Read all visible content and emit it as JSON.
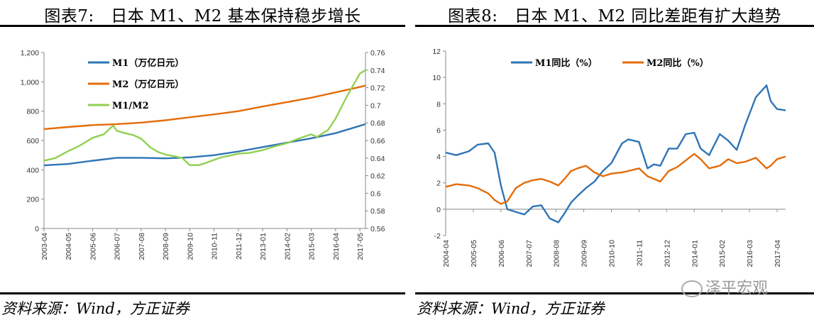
{
  "figures": [
    {
      "title": "图表7:　日本 M1、M2 基本保持稳步增长",
      "source": "资料来源：Wind，方正证券"
    },
    {
      "title": "图表8:　日本 M1、M2 同比差距有扩大趋势",
      "source": "资料来源：Wind，方正证券"
    }
  ],
  "watermark": "泽平宏观",
  "chart_data": [
    {
      "type": "line",
      "title": "图表7:　日本 M1、M2 基本保持稳步增长",
      "x_ticks": [
        "2003-04",
        "2004-05",
        "2005-06",
        "2006-07",
        "2007-08",
        "2008-09",
        "2009-10",
        "2010-11",
        "2011-12",
        "2013-01",
        "2014-02",
        "2015-03",
        "2016-04",
        "2017-05"
      ],
      "x_range": [
        "2003-04",
        "2017-08"
      ],
      "y_left_ticks": [
        "0",
        "200",
        "400",
        "600",
        "800",
        "1,000",
        "1,200"
      ],
      "y_left_range": [
        0,
        1200
      ],
      "y_right_ticks": [
        "0.56",
        "0.58",
        "0.6",
        "0.62",
        "0.64",
        "0.66",
        "0.68",
        "0.7",
        "0.72",
        "0.74",
        "0.76"
      ],
      "y_right_range": [
        0.56,
        0.76
      ],
      "grid": false,
      "legend_position": "top-left",
      "series": [
        {
          "name": "M1（万亿日元）",
          "axis": "left",
          "color": "#2e75b6",
          "x": [
            "2003-04",
            "2004-05",
            "2005-06",
            "2006-07",
            "2007-08",
            "2008-09",
            "2009-10",
            "2010-11",
            "2011-12",
            "2013-01",
            "2014-02",
            "2015-03",
            "2016-04",
            "2017-05",
            "2017-08"
          ],
          "y": [
            430,
            440,
            462,
            482,
            482,
            478,
            485,
            500,
            525,
            555,
            585,
            615,
            650,
            700,
            712
          ]
        },
        {
          "name": "M2（万亿日元）",
          "axis": "left",
          "color": "#e36c09",
          "x": [
            "2003-04",
            "2004-05",
            "2005-06",
            "2006-07",
            "2007-08",
            "2008-09",
            "2009-10",
            "2010-11",
            "2011-12",
            "2013-01",
            "2014-02",
            "2015-03",
            "2016-04",
            "2017-05",
            "2017-08"
          ],
          "y": [
            678,
            692,
            705,
            712,
            722,
            738,
            758,
            778,
            800,
            832,
            862,
            892,
            928,
            965,
            975
          ]
        },
        {
          "name": "M1/M2",
          "axis": "right",
          "color": "#92d050",
          "x": [
            "2003-04",
            "2003-10",
            "2004-05",
            "2004-11",
            "2005-06",
            "2005-12",
            "2006-05",
            "2006-07",
            "2006-10",
            "2007-04",
            "2007-08",
            "2008-01",
            "2008-05",
            "2008-09",
            "2009-02",
            "2009-06",
            "2009-10",
            "2010-03",
            "2010-06",
            "2010-11",
            "2011-03",
            "2011-08",
            "2011-12",
            "2012-06",
            "2013-01",
            "2013-07",
            "2014-02",
            "2014-08",
            "2015-03",
            "2015-06",
            "2015-12",
            "2016-04",
            "2016-10",
            "2017-05",
            "2017-08"
          ],
          "y": [
            0.637,
            0.64,
            0.648,
            0.654,
            0.663,
            0.667,
            0.677,
            0.671,
            0.669,
            0.666,
            0.662,
            0.652,
            0.647,
            0.644,
            0.642,
            0.64,
            0.632,
            0.632,
            0.634,
            0.638,
            0.641,
            0.643,
            0.645,
            0.646,
            0.649,
            0.653,
            0.657,
            0.662,
            0.667,
            0.664,
            0.672,
            0.685,
            0.71,
            0.736,
            0.74
          ]
        }
      ]
    },
    {
      "type": "line",
      "title": "图表8:　日本 M1、M2 同比差距有扩大趋势",
      "x_ticks": [
        "2004-04",
        "2005-05",
        "2006-06",
        "2007-07",
        "2008-08",
        "2009-09",
        "2010-10",
        "2011-11",
        "2012-12",
        "2014-01",
        "2015-02",
        "2016-03",
        "2017-04"
      ],
      "x_range": [
        "2004-04",
        "2017-08"
      ],
      "y_ticks": [
        "-2",
        "0",
        "2",
        "4",
        "6",
        "8",
        "10",
        "12"
      ],
      "y_range": [
        -2,
        12
      ],
      "grid": false,
      "legend_position": "top",
      "series": [
        {
          "name": "M1同比（%）",
          "color": "#2e75b6",
          "x": [
            "2004-04",
            "2004-09",
            "2005-03",
            "2005-07",
            "2005-12",
            "2006-03",
            "2006-06",
            "2006-09",
            "2007-01",
            "2007-05",
            "2007-09",
            "2008-01",
            "2008-05",
            "2008-09",
            "2008-12",
            "2009-03",
            "2009-06",
            "2009-10",
            "2010-02",
            "2010-06",
            "2010-10",
            "2011-03",
            "2011-06",
            "2011-11",
            "2012-03",
            "2012-06",
            "2012-09",
            "2013-01",
            "2013-05",
            "2013-09",
            "2014-01",
            "2014-04",
            "2014-08",
            "2015-01",
            "2015-05",
            "2015-09",
            "2016-01",
            "2016-06",
            "2016-11",
            "2017-01",
            "2017-04",
            "2017-08"
          ],
          "y": [
            4.3,
            4.1,
            4.4,
            4.9,
            5.0,
            4.3,
            1.8,
            0.0,
            -0.2,
            -0.4,
            0.2,
            0.3,
            -0.7,
            -1.0,
            -0.3,
            0.5,
            1.0,
            1.6,
            2.1,
            2.9,
            3.5,
            5.0,
            5.3,
            5.1,
            3.1,
            3.4,
            3.3,
            4.6,
            4.6,
            5.7,
            5.8,
            4.6,
            4.1,
            5.7,
            5.2,
            4.5,
            6.4,
            8.5,
            9.4,
            8.2,
            7.6,
            7.5
          ]
        },
        {
          "name": "M2同比（%）",
          "color": "#e36c09",
          "x": [
            "2004-04",
            "2004-09",
            "2005-03",
            "2005-07",
            "2005-12",
            "2006-03",
            "2006-06",
            "2006-09",
            "2007-01",
            "2007-05",
            "2007-09",
            "2008-01",
            "2008-05",
            "2008-09",
            "2008-12",
            "2009-03",
            "2009-06",
            "2009-10",
            "2010-02",
            "2010-06",
            "2010-10",
            "2011-03",
            "2011-06",
            "2011-11",
            "2012-03",
            "2012-06",
            "2012-09",
            "2013-01",
            "2013-05",
            "2013-09",
            "2014-01",
            "2014-04",
            "2014-08",
            "2015-01",
            "2015-05",
            "2015-09",
            "2016-01",
            "2016-06",
            "2016-11",
            "2017-01",
            "2017-04",
            "2017-08"
          ],
          "y": [
            1.7,
            1.9,
            1.8,
            1.6,
            1.2,
            0.7,
            0.4,
            0.6,
            1.6,
            2.0,
            2.2,
            2.3,
            2.1,
            1.8,
            2.3,
            2.9,
            3.1,
            3.3,
            2.8,
            2.5,
            2.7,
            2.8,
            2.9,
            3.1,
            2.5,
            2.3,
            2.1,
            2.9,
            3.2,
            3.7,
            4.2,
            3.8,
            3.1,
            3.3,
            3.8,
            3.5,
            3.6,
            3.9,
            3.1,
            3.3,
            3.8,
            4.0
          ]
        }
      ]
    }
  ]
}
